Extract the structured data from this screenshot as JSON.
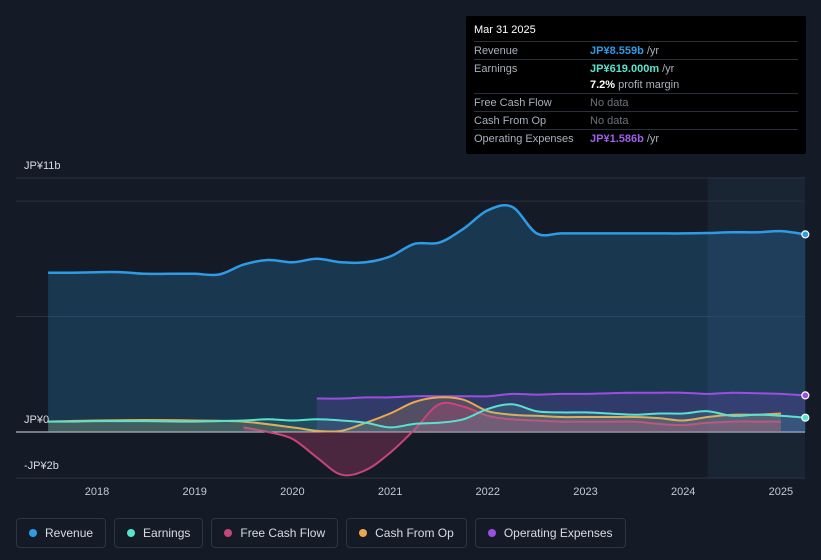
{
  "chart_data": {
    "type": "line",
    "title": "",
    "xlabel": "",
    "ylabel": "",
    "ylim": [
      -2,
      11
    ],
    "y_unit": "JP¥b",
    "x_ticks": [
      "2018",
      "2019",
      "2020",
      "2021",
      "2022",
      "2023",
      "2024",
      "2025"
    ],
    "y_ticks": [
      {
        "value": 11,
        "label": "JP¥11b"
      },
      {
        "value": 0,
        "label": "JP¥0"
      },
      {
        "value": -2,
        "label": "-JP¥2b"
      }
    ],
    "forecast_shade_start": 2024.25,
    "series": [
      {
        "name": "Revenue",
        "color": "#2e9be6",
        "points": [
          [
            2017.5,
            6.9
          ],
          [
            2017.75,
            6.9
          ],
          [
            2018.0,
            6.92
          ],
          [
            2018.25,
            6.92
          ],
          [
            2018.5,
            6.85
          ],
          [
            2018.75,
            6.85
          ],
          [
            2019.0,
            6.85
          ],
          [
            2019.25,
            6.82
          ],
          [
            2019.5,
            7.25
          ],
          [
            2019.75,
            7.45
          ],
          [
            2020.0,
            7.35
          ],
          [
            2020.25,
            7.5
          ],
          [
            2020.5,
            7.35
          ],
          [
            2020.75,
            7.35
          ],
          [
            2021.0,
            7.6
          ],
          [
            2021.25,
            8.15
          ],
          [
            2021.5,
            8.2
          ],
          [
            2021.75,
            8.8
          ],
          [
            2022.0,
            9.6
          ],
          [
            2022.25,
            9.75
          ],
          [
            2022.5,
            8.6
          ],
          [
            2022.75,
            8.6
          ],
          [
            2023.0,
            8.6
          ],
          [
            2023.25,
            8.6
          ],
          [
            2023.5,
            8.6
          ],
          [
            2023.75,
            8.6
          ],
          [
            2024.0,
            8.6
          ],
          [
            2024.25,
            8.62
          ],
          [
            2024.5,
            8.65
          ],
          [
            2024.75,
            8.65
          ],
          [
            2025.0,
            8.7
          ],
          [
            2025.25,
            8.559
          ]
        ]
      },
      {
        "name": "Earnings",
        "color": "#58e3cf",
        "points": [
          [
            2017.5,
            0.45
          ],
          [
            2017.75,
            0.45
          ],
          [
            2018.0,
            0.47
          ],
          [
            2018.5,
            0.47
          ],
          [
            2019.0,
            0.45
          ],
          [
            2019.5,
            0.5
          ],
          [
            2019.75,
            0.55
          ],
          [
            2020.0,
            0.5
          ],
          [
            2020.25,
            0.55
          ],
          [
            2020.5,
            0.5
          ],
          [
            2020.75,
            0.4
          ],
          [
            2021.0,
            0.2
          ],
          [
            2021.25,
            0.35
          ],
          [
            2021.5,
            0.4
          ],
          [
            2021.75,
            0.55
          ],
          [
            2022.0,
            1.0
          ],
          [
            2022.25,
            1.2
          ],
          [
            2022.5,
            0.9
          ],
          [
            2022.75,
            0.85
          ],
          [
            2023.0,
            0.85
          ],
          [
            2023.25,
            0.8
          ],
          [
            2023.5,
            0.75
          ],
          [
            2023.75,
            0.8
          ],
          [
            2024.0,
            0.8
          ],
          [
            2024.25,
            0.9
          ],
          [
            2024.5,
            0.7
          ],
          [
            2024.75,
            0.75
          ],
          [
            2025.0,
            0.7
          ],
          [
            2025.25,
            0.619
          ]
        ]
      },
      {
        "name": "Free Cash Flow",
        "color": "#c8457a",
        "points": [
          [
            2019.5,
            0.2
          ],
          [
            2019.75,
            0.0
          ],
          [
            2020.0,
            -0.3
          ],
          [
            2020.25,
            -1.1
          ],
          [
            2020.5,
            -1.85
          ],
          [
            2020.75,
            -1.65
          ],
          [
            2021.0,
            -0.9
          ],
          [
            2021.25,
            0.1
          ],
          [
            2021.5,
            1.2
          ],
          [
            2021.75,
            1.1
          ],
          [
            2022.0,
            0.7
          ],
          [
            2022.25,
            0.55
          ],
          [
            2022.5,
            0.5
          ],
          [
            2022.75,
            0.45
          ],
          [
            2023.0,
            0.45
          ],
          [
            2023.25,
            0.45
          ],
          [
            2023.5,
            0.45
          ],
          [
            2023.75,
            0.35
          ],
          [
            2024.0,
            0.3
          ],
          [
            2024.25,
            0.4
          ],
          [
            2024.5,
            0.45
          ],
          [
            2024.75,
            0.45
          ],
          [
            2025.0,
            0.45
          ]
        ]
      },
      {
        "name": "Cash From Op",
        "color": "#e9a84f",
        "points": [
          [
            2017.5,
            0.45
          ],
          [
            2018.0,
            0.5
          ],
          [
            2018.5,
            0.52
          ],
          [
            2019.0,
            0.5
          ],
          [
            2019.5,
            0.45
          ],
          [
            2020.0,
            0.2
          ],
          [
            2020.25,
            0.05
          ],
          [
            2020.5,
            0.05
          ],
          [
            2020.75,
            0.4
          ],
          [
            2021.0,
            0.8
          ],
          [
            2021.25,
            1.3
          ],
          [
            2021.5,
            1.5
          ],
          [
            2021.75,
            1.4
          ],
          [
            2022.0,
            0.9
          ],
          [
            2022.25,
            0.75
          ],
          [
            2022.5,
            0.7
          ],
          [
            2022.75,
            0.65
          ],
          [
            2023.0,
            0.65
          ],
          [
            2023.25,
            0.65
          ],
          [
            2023.5,
            0.65
          ],
          [
            2023.75,
            0.6
          ],
          [
            2024.0,
            0.5
          ],
          [
            2024.25,
            0.65
          ],
          [
            2024.5,
            0.75
          ],
          [
            2024.75,
            0.75
          ],
          [
            2025.0,
            0.8
          ]
        ]
      },
      {
        "name": "Operating Expenses",
        "color": "#9c4ee0",
        "points": [
          [
            2020.25,
            1.45
          ],
          [
            2020.5,
            1.45
          ],
          [
            2020.75,
            1.5
          ],
          [
            2021.0,
            1.5
          ],
          [
            2021.25,
            1.55
          ],
          [
            2021.5,
            1.55
          ],
          [
            2021.75,
            1.55
          ],
          [
            2022.0,
            1.55
          ],
          [
            2022.25,
            1.65
          ],
          [
            2022.5,
            1.62
          ],
          [
            2022.75,
            1.65
          ],
          [
            2023.0,
            1.65
          ],
          [
            2023.25,
            1.68
          ],
          [
            2023.5,
            1.7
          ],
          [
            2023.75,
            1.7
          ],
          [
            2024.0,
            1.7
          ],
          [
            2024.25,
            1.65
          ],
          [
            2024.5,
            1.7
          ],
          [
            2024.75,
            1.68
          ],
          [
            2025.0,
            1.65
          ],
          [
            2025.25,
            1.586
          ]
        ]
      }
    ]
  },
  "tooltip": {
    "date": "Mar 31 2025",
    "rows": [
      {
        "label": "Revenue",
        "value": "JP¥8.559b",
        "unit": "/yr",
        "color": "#2e9be6"
      },
      {
        "label": "Earnings",
        "value": "JP¥619.000m",
        "unit": "/yr",
        "color": "#58e3cf"
      },
      {
        "label": "",
        "value": "7.2%",
        "unit": "profit margin",
        "color": "#ffffff"
      },
      {
        "label": "Free Cash Flow",
        "value": "No data",
        "unit": "",
        "color": "#6d737c"
      },
      {
        "label": "Cash From Op",
        "value": "No data",
        "unit": "",
        "color": "#6d737c"
      },
      {
        "label": "Operating Expenses",
        "value": "JP¥1.586b",
        "unit": "/yr",
        "color": "#a15ee8"
      }
    ]
  },
  "legend": [
    {
      "label": "Revenue",
      "color": "#2e9be6"
    },
    {
      "label": "Earnings",
      "color": "#58e3cf"
    },
    {
      "label": "Free Cash Flow",
      "color": "#c8457a"
    },
    {
      "label": "Cash From Op",
      "color": "#e9a84f"
    },
    {
      "label": "Operating Expenses",
      "color": "#9c4ee0"
    }
  ]
}
